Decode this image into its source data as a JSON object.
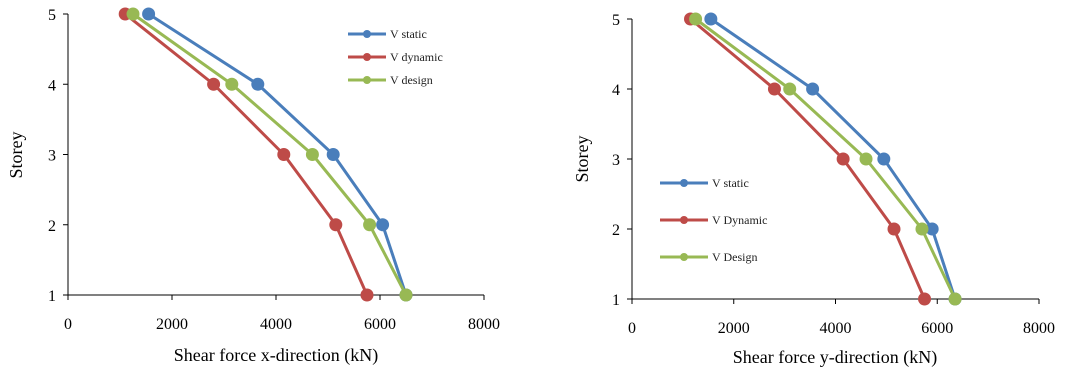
{
  "chart_data": [
    {
      "type": "line",
      "xlabel": "Shear force x-direction (kN)",
      "ylabel": "Storey",
      "xlim": [
        0,
        8000
      ],
      "ylim": [
        1,
        5
      ],
      "xticks": [
        "0",
        "2000",
        "4000",
        "6000",
        "8000"
      ],
      "yticks": [
        "1",
        "2",
        "3",
        "4",
        "5"
      ],
      "legend_position": "top-right",
      "series": [
        {
          "name": "V static",
          "color": "#4a7ebb",
          "x": [
            6500,
            6050,
            5100,
            3650,
            1550
          ],
          "y": [
            1,
            2,
            3,
            4,
            5
          ]
        },
        {
          "name": "V dynamic",
          "color": "#be4b48",
          "x": [
            5750,
            5150,
            4150,
            2800,
            1100
          ],
          "y": [
            1,
            2,
            3,
            4,
            5
          ]
        },
        {
          "name": "V design",
          "color": "#98b954",
          "x": [
            6500,
            5800,
            4700,
            3150,
            1250
          ],
          "y": [
            1,
            2,
            3,
            4,
            5
          ]
        }
      ]
    },
    {
      "type": "line",
      "xlabel": "Shear force y-direction (kN)",
      "ylabel": "Storey",
      "xlim": [
        0,
        8000
      ],
      "ylim": [
        1,
        5
      ],
      "xticks": [
        "0",
        "2000",
        "4000",
        "6000",
        "8000"
      ],
      "yticks": [
        "1",
        "2",
        "3",
        "4",
        "5"
      ],
      "legend_position": "left-middle",
      "series": [
        {
          "name": "V static",
          "color": "#4a7ebb",
          "x": [
            6350,
            5900,
            4950,
            3550,
            1550
          ],
          "y": [
            1,
            2,
            3,
            4,
            5
          ]
        },
        {
          "name": "V Dynamic",
          "color": "#be4b48",
          "x": [
            5750,
            5150,
            4150,
            2800,
            1150
          ],
          "y": [
            1,
            2,
            3,
            4,
            5
          ]
        },
        {
          "name": "V Design",
          "color": "#98b954",
          "x": [
            6350,
            5700,
            4600,
            3100,
            1250
          ],
          "y": [
            1,
            2,
            3,
            4,
            5
          ]
        }
      ]
    }
  ]
}
